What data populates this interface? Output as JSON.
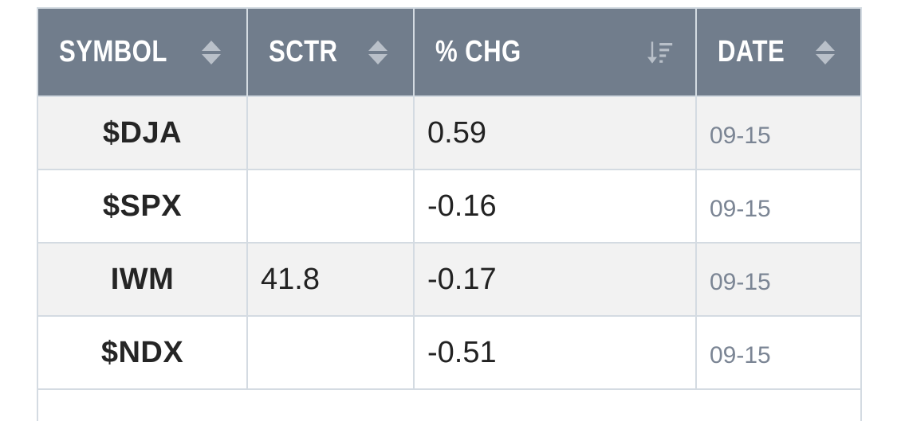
{
  "table": {
    "headers": [
      {
        "label": "SYMBOL",
        "sort": "unsorted"
      },
      {
        "label": "SCTR",
        "sort": "unsorted"
      },
      {
        "label": "% CHG",
        "sort": "descending"
      },
      {
        "label": "DATE",
        "sort": "unsorted"
      }
    ],
    "rows": [
      {
        "symbol": "$DJA",
        "sctr": "",
        "chg": "0.59",
        "date": "09-15"
      },
      {
        "symbol": "$SPX",
        "sctr": "",
        "chg": "-0.16",
        "date": "09-15"
      },
      {
        "symbol": "IWM",
        "sctr": "41.8",
        "chg": "-0.17",
        "date": "09-15"
      },
      {
        "symbol": "$NDX",
        "sctr": "",
        "chg": "-0.51",
        "date": "09-15"
      }
    ]
  },
  "colors": {
    "header_bg": "#717d8c",
    "header_text": "#ffffff",
    "border": "#d4dbe2",
    "row_alt_bg": "#f2f2f2",
    "date_text": "#7b8594"
  },
  "icons": {
    "unsorted": "sort-both-icon",
    "descending": "sort-descending-icon"
  }
}
